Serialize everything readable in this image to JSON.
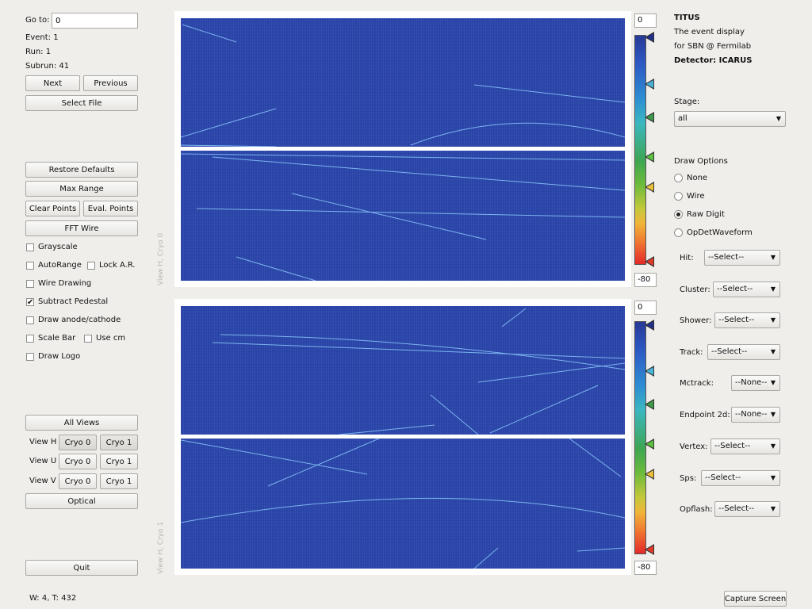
{
  "nav": {
    "goto_label": "Go to:",
    "goto_value": "0",
    "event": "Event: 1",
    "run": "Run: 1",
    "subrun": "Subrun: 41",
    "next": "Next",
    "previous": "Previous",
    "select_file": "Select File"
  },
  "controls": {
    "restore_defaults": "Restore Defaults",
    "max_range": "Max Range",
    "clear_points": "Clear Points",
    "eval_points": "Eval. Points",
    "fft_wire": "FFT Wire"
  },
  "checkboxes": {
    "grayscale": {
      "label": "Grayscale",
      "checked": false
    },
    "autorange": {
      "label": "AutoRange",
      "checked": false
    },
    "lock_ar": {
      "label": "Lock A.R.",
      "checked": false
    },
    "wire_drawing": {
      "label": "Wire Drawing",
      "checked": false
    },
    "subtract_pedestal": {
      "label": "Subtract Pedestal",
      "checked": true
    },
    "draw_anode_cathode": {
      "label": "Draw anode/cathode",
      "checked": false
    },
    "scale_bar": {
      "label": "Scale Bar",
      "checked": false
    },
    "use_cm": {
      "label": "Use cm",
      "checked": false
    },
    "draw_logo": {
      "label": "Draw Logo",
      "checked": false
    }
  },
  "views": {
    "all_views": "All Views",
    "view_h": "View H",
    "view_u": "View U",
    "view_v": "View V",
    "cryo0": "Cryo 0",
    "cryo1": "Cryo 1",
    "optical": "Optical",
    "quit": "Quit"
  },
  "status": "W: 4, T: 432",
  "capture": "Capture Screen",
  "plots": {
    "top_label": "View H, Cryo 0",
    "bottom_label": "View H, Cryo 1",
    "top_max": "0",
    "top_min": "-80",
    "bottom_max": "0",
    "bottom_min": "-80"
  },
  "header": {
    "title": "TITUS",
    "line1": "The event display",
    "line2": "for SBN @ Fermilab",
    "detector": "Detector: ICARUS"
  },
  "stage": {
    "label": "Stage:",
    "value": "all"
  },
  "draw_options": {
    "label": "Draw Options",
    "options": [
      "None",
      "Wire",
      "Raw Digit",
      "OpDetWaveform"
    ],
    "selected": "Raw Digit"
  },
  "products": [
    {
      "label": "Hit:",
      "value": "--Select--"
    },
    {
      "label": "Cluster:",
      "value": "--Select--"
    },
    {
      "label": "Shower:",
      "value": "--Select--"
    },
    {
      "label": "Track:",
      "value": "--Select--"
    },
    {
      "label": "Mctrack:",
      "value": "--None--"
    },
    {
      "label": "Endpoint 2d:",
      "value": "--None--"
    },
    {
      "label": "Vertex:",
      "value": "--Select--"
    },
    {
      "label": "Sps:",
      "value": "--Select--"
    },
    {
      "label": "Opflash:",
      "value": "--Select--"
    }
  ],
  "colors": {
    "plot_bg": "#2b45a8",
    "handle_top": "#1f2f8a",
    "handle_2": "#4ab4d8",
    "handle_3": "#3c9a48",
    "handle_4": "#5cc040",
    "handle_5": "#e8c03a",
    "handle_bottom": "#e03a2a"
  }
}
